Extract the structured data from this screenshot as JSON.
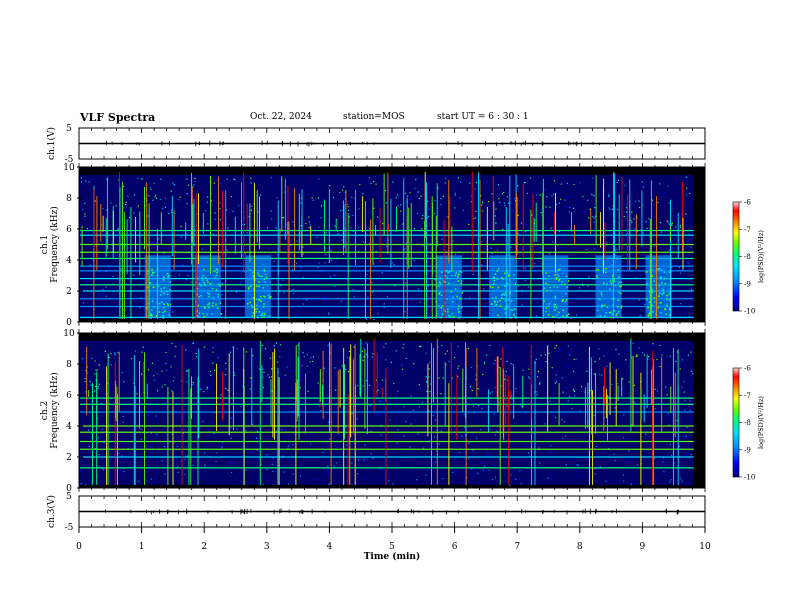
{
  "header": {
    "title": "VLF Spectra",
    "date": "Oct. 22, 2024",
    "station": "station=MOS",
    "start": "start  UT  =   6  : 30 : 1"
  },
  "chart_data": [
    {
      "type": "line",
      "panel": "ch1-waveform",
      "ylabel": "ch.1(V)",
      "ylim": [
        -5,
        5
      ],
      "y_ticks": [
        "5",
        "-5"
      ],
      "xlim": [
        0,
        10
      ],
      "x": [
        0,
        10
      ],
      "values": [
        0,
        0
      ]
    },
    {
      "type": "heatmap",
      "panel": "ch1-spectrogram",
      "ylabel": "ch.1\nFrequency (kHz)",
      "ylim": [
        0,
        10
      ],
      "y_ticks": [
        "0",
        "2",
        "4",
        "6",
        "8",
        "10"
      ],
      "xlim": [
        0,
        10
      ],
      "colorbar": {
        "label": "log(PSD)(V²/Hz)",
        "range": [
          -10,
          -6
        ],
        "ticks": [
          "-6",
          "-7",
          "-8",
          "-9",
          "-10"
        ]
      },
      "bursts_min": [
        1.05,
        1.85,
        2.65,
        5.7,
        6.55,
        7.4,
        8.25,
        9.05
      ],
      "horizontal_lines_khz": [
        0.3,
        1.0,
        1.5,
        2.0,
        2.4,
        2.8,
        3.3,
        3.6,
        4.1,
        4.5,
        5.0,
        5.6,
        5.9
      ]
    },
    {
      "type": "heatmap",
      "panel": "ch2-spectrogram",
      "ylabel": "ch.2\nFrequency (kHz)",
      "ylim": [
        0,
        10
      ],
      "y_ticks": [
        "0",
        "2",
        "4",
        "6",
        "8",
        "10"
      ],
      "xlim": [
        0,
        10
      ],
      "colorbar": {
        "label": "log(PSD)(V²/Hz)",
        "range": [
          -10,
          -6
        ],
        "ticks": [
          "-6",
          "-7",
          "-8",
          "-9",
          "-10"
        ]
      },
      "horizontal_lines_khz": [
        1.3,
        2.0,
        2.5,
        3.0,
        3.6,
        4.0,
        4.9,
        5.4,
        5.8
      ]
    },
    {
      "type": "line",
      "panel": "ch3-waveform",
      "ylabel": "ch.3(V)",
      "ylim": [
        -5,
        5
      ],
      "y_ticks": [
        "5",
        "-5"
      ],
      "xlim": [
        0,
        10
      ],
      "x": [
        0,
        10
      ],
      "values": [
        0,
        0
      ]
    }
  ],
  "xaxis": {
    "label": "Time  (min)",
    "ticks": [
      "0",
      "1",
      "2",
      "3",
      "4",
      "5",
      "6",
      "7",
      "8",
      "9",
      "10"
    ]
  },
  "colors": {
    "colormap": [
      "#00007a",
      "#0000ff",
      "#0090ff",
      "#00e0ff",
      "#00ff80",
      "#60ff00",
      "#ffff00",
      "#ff8000",
      "#ff0000",
      "#ffd8d8"
    ]
  }
}
